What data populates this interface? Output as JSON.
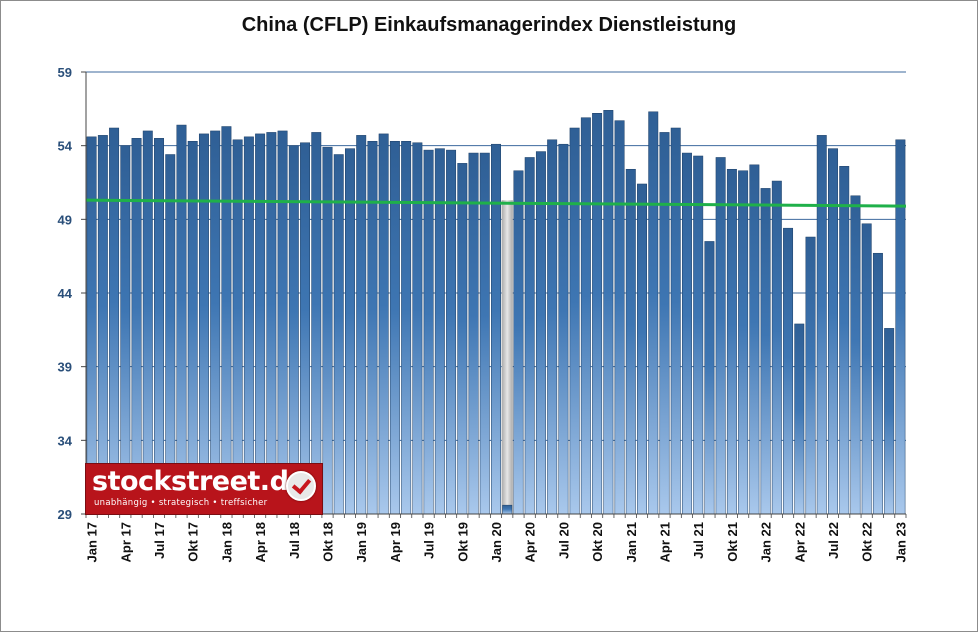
{
  "chart_data": {
    "type": "bar",
    "title": "China (CFLP) Einkaufsmanagerindex Dienstleistung",
    "xlabel": "",
    "ylabel": "",
    "ylim": [
      29,
      59
    ],
    "yticks": [
      29,
      34,
      39,
      44,
      49,
      54,
      59
    ],
    "grid": true,
    "categories": [
      "Jan 17",
      "Feb 17",
      "Mrz 17",
      "Apr 17",
      "Mai 17",
      "Jun 17",
      "Jul 17",
      "Aug 17",
      "Sep 17",
      "Okt 17",
      "Nov 17",
      "Dez 17",
      "Jan 18",
      "Feb 18",
      "Mrz 18",
      "Apr 18",
      "Mai 18",
      "Jun 18",
      "Jul 18",
      "Aug 18",
      "Sep 18",
      "Okt 18",
      "Nov 18",
      "Dez 18",
      "Jan 19",
      "Feb 19",
      "Mrz 19",
      "Apr 19",
      "Mai 19",
      "Jun 19",
      "Jul 19",
      "Aug 19",
      "Sep 19",
      "Okt 19",
      "Nov 19",
      "Dez 19",
      "Jan 20",
      "Feb 20",
      "Mrz 20",
      "Apr 20",
      "Mai 20",
      "Jun 20",
      "Jul 20",
      "Aug 20",
      "Sep 20",
      "Okt 20",
      "Nov 20",
      "Dez 20",
      "Jan 21",
      "Feb 21",
      "Mrz 21",
      "Apr 21",
      "Mai 21",
      "Jun 21",
      "Jul 21",
      "Aug 21",
      "Sep 21",
      "Okt 21",
      "Nov 21",
      "Dez 21",
      "Jan 22",
      "Feb 22",
      "Mrz 22",
      "Apr 22",
      "Mai 22",
      "Jun 22",
      "Jul 22",
      "Aug 22",
      "Sep 22",
      "Okt 22",
      "Nov 22",
      "Dez 22",
      "Jan 23"
    ],
    "x_tick_labels": [
      "Jan 17",
      "Apr 17",
      "Jul 17",
      "Okt 17",
      "Jan 18",
      "Apr 18",
      "Jul 18",
      "Okt 18",
      "Jan 19",
      "Apr 19",
      "Jul 19",
      "Okt 19",
      "Jan 20",
      "Apr 20",
      "Jul 20",
      "Okt 20",
      "Jan 21",
      "Apr 21",
      "Jul 21",
      "Okt 21",
      "Jan 22",
      "Apr 22",
      "Jul 22",
      "Okt 22",
      "Jan 23"
    ],
    "series": [
      {
        "values": [
          54.6,
          54.7,
          55.2,
          54.0,
          54.5,
          55.0,
          54.5,
          53.4,
          55.4,
          54.3,
          54.8,
          55.0,
          55.3,
          54.4,
          54.6,
          54.8,
          54.9,
          55.0,
          54.0,
          54.2,
          54.9,
          53.9,
          53.4,
          53.8,
          54.7,
          54.3,
          54.8,
          54.3,
          54.3,
          54.2,
          53.7,
          53.8,
          53.7,
          52.8,
          53.5,
          53.5,
          54.1,
          29.6,
          52.3,
          53.2,
          53.6,
          54.4,
          54.1,
          55.2,
          55.9,
          56.2,
          56.4,
          55.7,
          52.4,
          51.4,
          56.3,
          54.9,
          55.2,
          53.5,
          53.3,
          47.5,
          53.2,
          52.4,
          52.3,
          52.7,
          51.1,
          51.6,
          48.4,
          41.9,
          47.8,
          54.7,
          53.8,
          52.6,
          50.6,
          48.7,
          46.7,
          41.6,
          54.4
        ],
        "colors": {
          "bar": "#2f5f95",
          "bar_light": "#a9c8ec",
          "special_bar": "#b9b9b9"
        }
      },
      {
        "type": "trend-line",
        "start": 50.3,
        "end": 49.9,
        "color": "#1fb04a"
      }
    ]
  },
  "logo": {
    "alt": "stockstreet.de unabhängig • strategisch • treffsicher"
  }
}
